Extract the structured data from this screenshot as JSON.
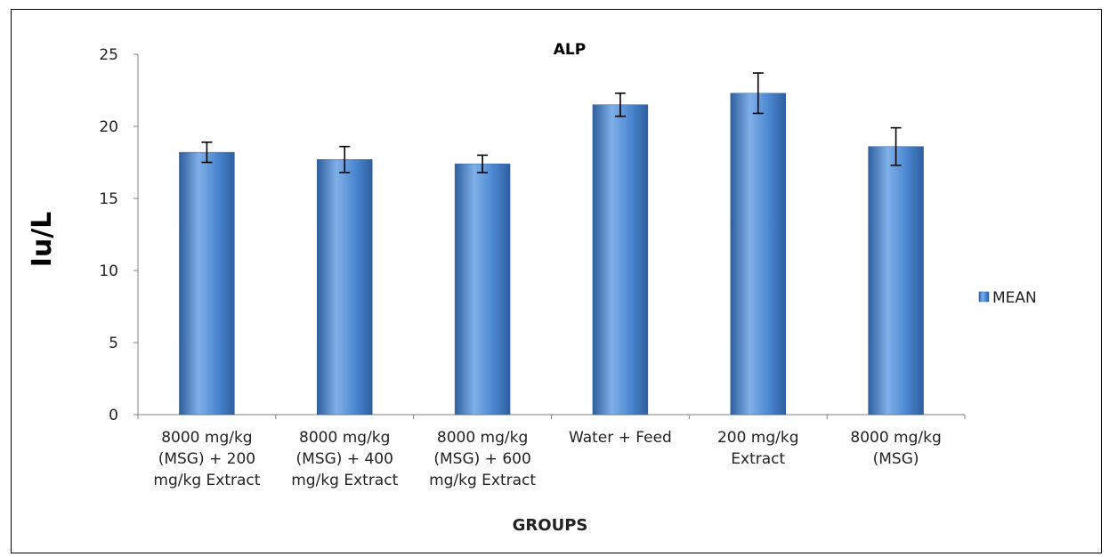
{
  "chart_data": {
    "type": "bar",
    "title": "ALP",
    "xlabel": "GROUPS",
    "ylabel": "Iu/L",
    "ylim": [
      0,
      25
    ],
    "yticks": [
      0,
      5,
      10,
      15,
      20,
      25
    ],
    "categories": [
      [
        "8000 mg/kg",
        "(MSG) + 200",
        "mg/kg Extract"
      ],
      [
        "8000 mg/kg",
        "(MSG) + 400",
        "mg/kg Extract"
      ],
      [
        "8000 mg/kg",
        "(MSG) + 600",
        "mg/kg Extract"
      ],
      [
        "Water + Feed"
      ],
      [
        "200 mg/kg",
        "Extract"
      ],
      [
        "8000 mg/kg",
        "(MSG)"
      ]
    ],
    "series": [
      {
        "name": "MEAN",
        "values": [
          18.2,
          17.7,
          17.4,
          21.5,
          22.3,
          18.6
        ],
        "errors": [
          0.7,
          0.9,
          0.6,
          0.8,
          1.4,
          1.3
        ]
      }
    ],
    "legend": {
      "position": "right"
    },
    "grid": false,
    "colors": {
      "bar_dark": "#2e5f9e",
      "bar_mid": "#4a86d0",
      "bar_light": "#7fb0e8",
      "axis": "#808080",
      "error_bar": "#000000"
    }
  }
}
